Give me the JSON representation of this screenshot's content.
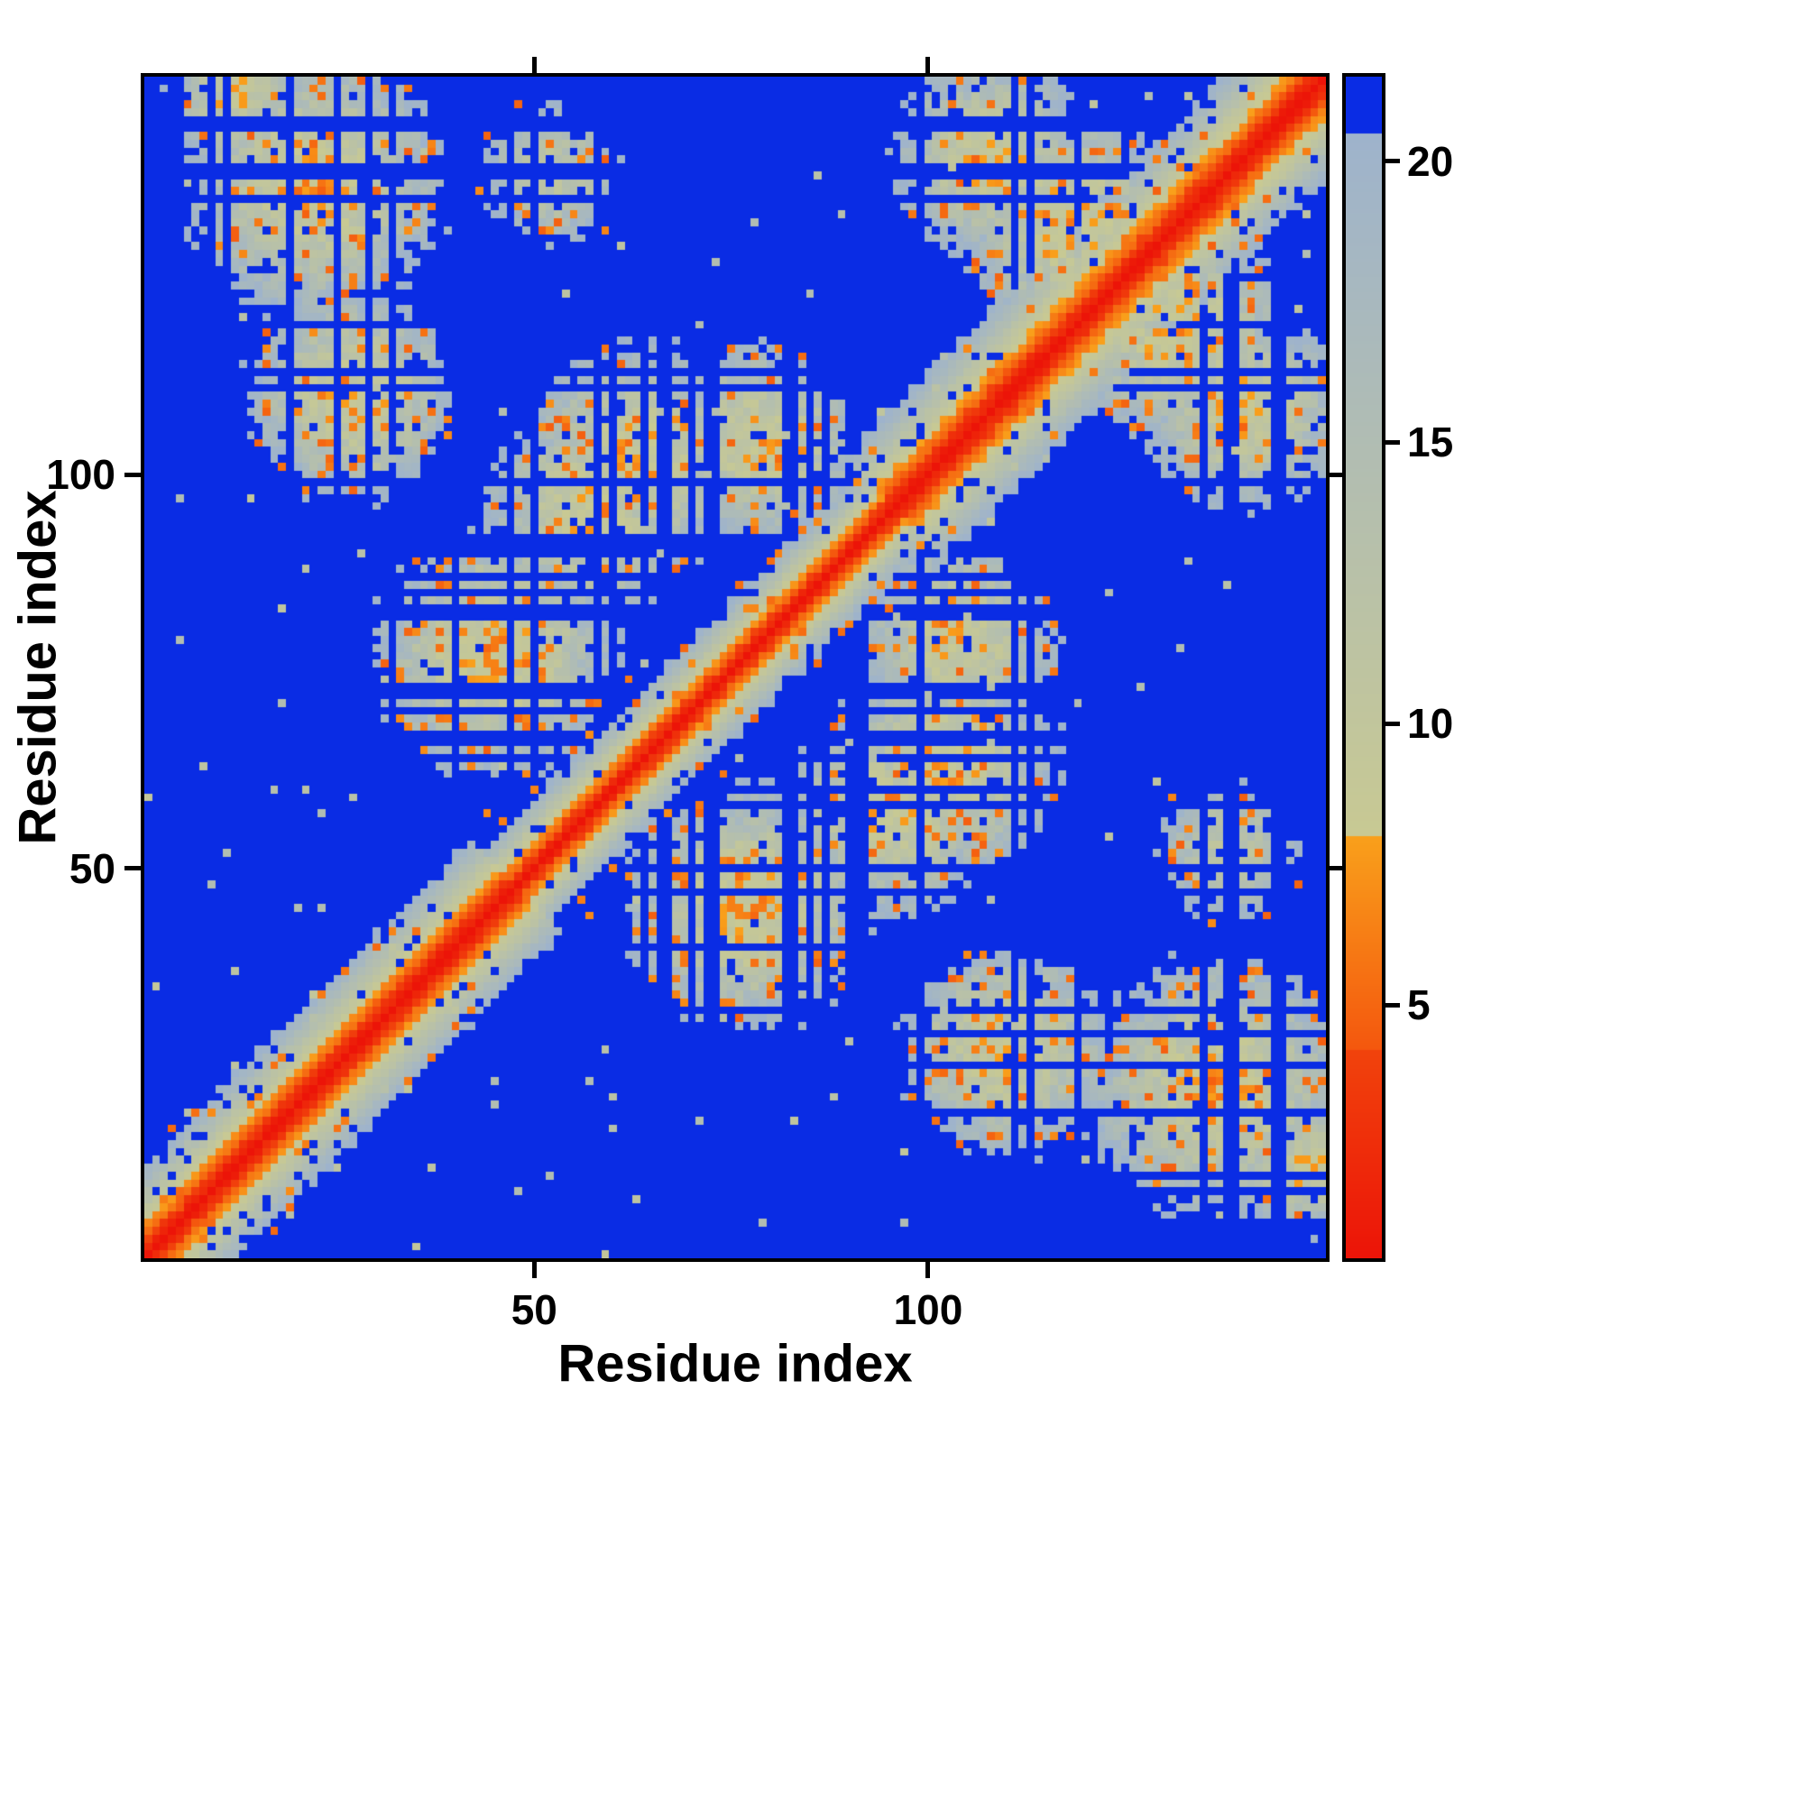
{
  "figure": {
    "background": "#ffffff",
    "frame_color": "#000000"
  },
  "chart_data": {
    "type": "heatmap",
    "title": "",
    "xlabel": "Residue index",
    "ylabel": "Residue index",
    "n_residues": 150,
    "x_range": [
      1,
      150
    ],
    "y_range": [
      1,
      150
    ],
    "y_axis_direction": "up",
    "grid": false,
    "x_ticks": [
      50,
      100
    ],
    "x_tick_labels": [
      "50",
      "100"
    ],
    "y_ticks": [
      50,
      100
    ],
    "y_tick_labels": [
      "50",
      "100"
    ],
    "colorbar": {
      "position": "right",
      "range": [
        0.5,
        21.5
      ],
      "ticks": [
        5,
        10,
        15,
        20
      ],
      "tick_labels": [
        "5",
        "10",
        "15",
        "20"
      ]
    },
    "colormap": {
      "description": "protein residue-residue distance map: red = short distance (diagonal), orange, then khaki/gray-blue halo, blue = beyond cutoff",
      "red_max": 4.2,
      "orange_max": 8.0,
      "gray_max": 20.5,
      "colors": {
        "red_lo": "#ec1408",
        "red_hi": "#f1430c",
        "orange_lo": "#f4570e",
        "orange_hi": "#f9a01b",
        "gray_lo": "#c8c993",
        "gray_hi": "#9eb3cc",
        "blue": "#0a2ce4"
      }
    },
    "matrix_spec": {
      "kind": "synthetic-protein-distance-map",
      "symmetric": true,
      "cutoff": 21.6,
      "seed": 7,
      "diag_scale": 2.25,
      "diag_width_segments": [
        [
          0,
          48,
          1.28
        ],
        [
          48,
          96,
          0.98
        ],
        [
          96,
          151,
          1.42
        ]
      ],
      "streak_prob": 0.2,
      "hole_prob": 0.1,
      "global_speckle_prob": 0.007,
      "orange_speckle_threshold": 0.9,
      "clusters": [
        {
          "ci": 22,
          "cj": 137,
          "r": 17,
          "depth": 8.5
        },
        {
          "ci": 27,
          "cj": 110,
          "r": 14,
          "depth": 9
        },
        {
          "ci": 45,
          "cj": 77,
          "r": 16,
          "depth": 8.5
        },
        {
          "ci": 63,
          "cj": 102,
          "r": 15,
          "depth": 9
        },
        {
          "ci": 95,
          "cj": 57,
          "r": 14,
          "depth": 9
        },
        {
          "ci": 104,
          "cj": 79,
          "r": 13,
          "depth": 9
        },
        {
          "ci": 108,
          "cj": 140,
          "r": 13,
          "depth": 9
        },
        {
          "ci": 118,
          "cj": 132,
          "r": 14,
          "depth": 8.5
        },
        {
          "ci": 138,
          "cj": 52,
          "r": 10,
          "depth": 11
        },
        {
          "ci": 12,
          "cj": 148,
          "r": 9,
          "depth": 9.5
        }
      ]
    }
  }
}
